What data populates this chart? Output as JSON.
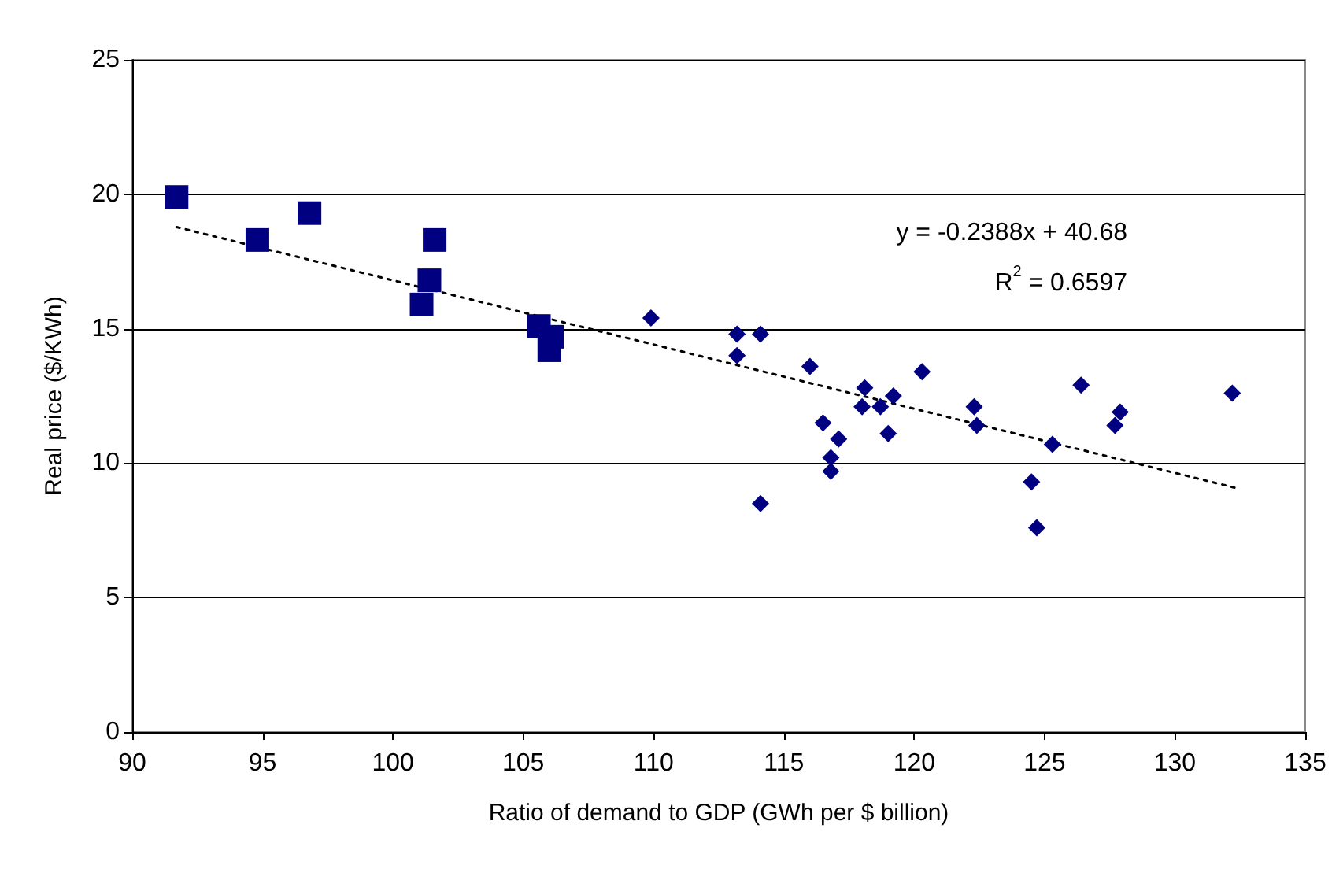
{
  "chart_data": {
    "type": "scatter",
    "xlabel": "Ratio of demand to GDP (GWh per $ billion)",
    "ylabel": "Real price ($/KWh)",
    "xlim": [
      90,
      135
    ],
    "xticks": [
      90,
      95,
      100,
      105,
      110,
      115,
      120,
      125,
      130,
      135
    ],
    "ylim": [
      0,
      25
    ],
    "yticks": [
      0,
      5,
      10,
      15,
      20,
      25
    ],
    "grid": "y",
    "annotations": [
      "y = -0.2388x + 40.68",
      "R$^{2}$ = 0.6597"
    ],
    "series": [
      {
        "marker": "square",
        "color": "#000080",
        "x": [
          91.7,
          94.8,
          96.8,
          101.6,
          101.4,
          101.1,
          105.6,
          106.1,
          106.0
        ],
        "values": [
          19.9,
          18.3,
          19.3,
          18.3,
          16.8,
          15.9,
          15.1,
          14.7,
          14.2
        ]
      },
      {
        "marker": "diamond",
        "color": "#000080",
        "x": [
          109.9,
          113.2,
          114.1,
          113.2,
          116.0,
          120.3,
          118.1,
          118.0,
          118.7,
          119.2,
          122.3,
          122.4,
          116.5,
          117.1,
          119.0,
          116.8,
          116.8,
          114.1,
          126.4,
          132.2,
          127.9,
          127.7,
          125.3,
          124.5,
          124.7
        ],
        "values": [
          15.4,
          14.8,
          14.8,
          14.0,
          13.6,
          13.4,
          12.8,
          12.1,
          12.1,
          12.5,
          12.1,
          11.4,
          11.5,
          10.9,
          11.1,
          10.2,
          9.7,
          8.5,
          12.9,
          12.6,
          11.9,
          11.4,
          10.7,
          9.3,
          7.6
        ]
      },
      {
        "type": "line",
        "marker": "none",
        "line_style": "dotted",
        "color": "#000000",
        "x": [
          91.7,
          132.5
        ],
        "values": [
          18.78,
          9.04
        ]
      }
    ]
  }
}
